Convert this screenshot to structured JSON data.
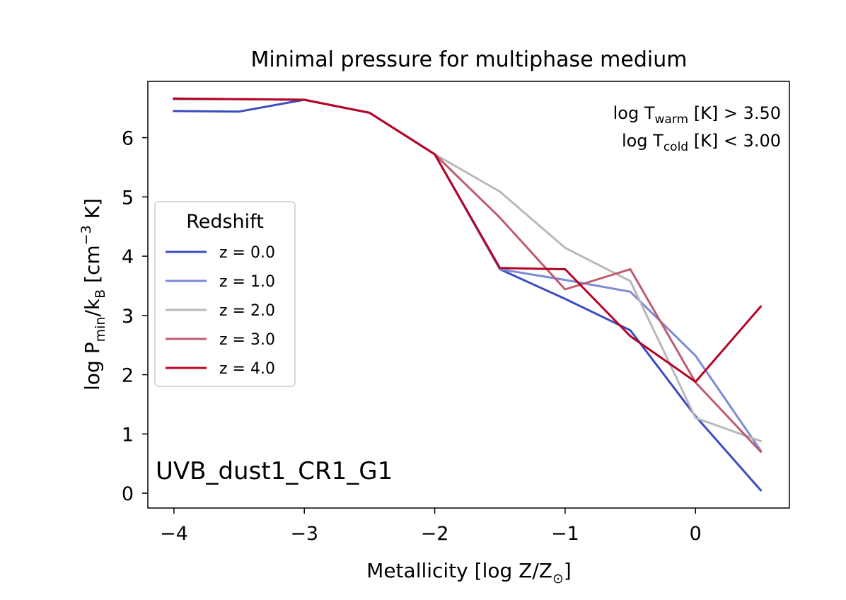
{
  "chart_data": {
    "type": "line",
    "title": "Minimal pressure for multiphase medium",
    "xlabel": {
      "prefix": "Metallicity [log Z/Z",
      "sub": "⊙",
      "suffix": "]"
    },
    "ylabel": {
      "p1": "log P",
      "sub1": "min",
      "p2": "/k",
      "sub2": "B",
      "p3": " [cm",
      "sup": "−3",
      "p4": " K]"
    },
    "xlim": [
      -4.2,
      0.72
    ],
    "ylim": [
      -0.25,
      6.95
    ],
    "xticks": [
      -4,
      -3,
      -2,
      -1,
      0
    ],
    "xtick_labels": [
      "−4",
      "−3",
      "−2",
      "−1",
      "0"
    ],
    "yticks": [
      0,
      1,
      2,
      3,
      4,
      5,
      6
    ],
    "ytick_labels": [
      "0",
      "1",
      "2",
      "3",
      "4",
      "5",
      "6"
    ],
    "x": [
      -4.0,
      -3.5,
      -3.0,
      -2.5,
      -2.0,
      -1.5,
      -1.0,
      -0.5,
      0.0,
      0.5
    ],
    "series": [
      {
        "name": "z = 0.0",
        "color": "#3b4cc0",
        "values": [
          6.45,
          6.44,
          6.64,
          6.42,
          5.72,
          3.78,
          3.28,
          2.75,
          1.3,
          0.05
        ]
      },
      {
        "name": "z = 1.0",
        "color": "#7b8bd6",
        "values": [
          6.65,
          6.65,
          6.64,
          6.42,
          5.72,
          3.78,
          3.6,
          3.4,
          2.32,
          0.72
        ]
      },
      {
        "name": "z = 2.0",
        "color": "#b9b9b9",
        "values": [
          6.66,
          6.65,
          6.64,
          6.42,
          5.72,
          5.09,
          4.14,
          3.58,
          1.27,
          0.88
        ]
      },
      {
        "name": "z = 3.0",
        "color": "#bd5c6f",
        "values": [
          6.66,
          6.65,
          6.64,
          6.42,
          5.72,
          4.65,
          3.44,
          3.78,
          1.87,
          0.7
        ]
      },
      {
        "name": "z = 4.0",
        "color": "#b40426",
        "values": [
          6.66,
          6.65,
          6.64,
          6.42,
          5.72,
          3.8,
          3.78,
          2.65,
          1.88,
          3.15
        ]
      }
    ],
    "legend": {
      "title": "Redshift",
      "position": "center-left"
    },
    "annotations": {
      "warm": {
        "pre": "log T",
        "sub": "warm",
        "post": " [K] > 3.50"
      },
      "cold": {
        "pre": "log T",
        "sub": "cold",
        "post": " [K] < 3.00"
      },
      "model": "UVB_dust1_CR1_G1"
    },
    "grid": false
  }
}
